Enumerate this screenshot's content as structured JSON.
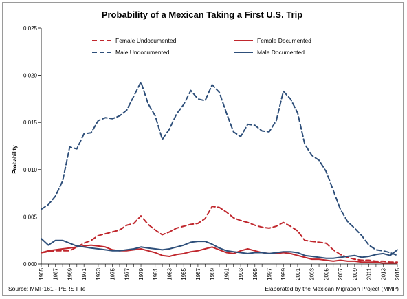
{
  "chart_data": {
    "type": "line",
    "title": "Probability  of a Mexican Taking a First U.S. Trip",
    "xlabel": "",
    "ylabel": "Probability",
    "ylim": [
      0,
      0.025
    ],
    "yticks": [
      "0.000",
      "0.005",
      "0.010",
      "0.015",
      "0.020",
      "0.025"
    ],
    "xticks": [
      "1965",
      "1967",
      "1969",
      "1971",
      "1973",
      "1975",
      "1977",
      "1979",
      "1981",
      "1983",
      "1985",
      "1987",
      "1989",
      "1991",
      "1993",
      "1995",
      "1997",
      "1999",
      "2001",
      "2003",
      "2005",
      "2007",
      "2009",
      "2011",
      "2013",
      "2015"
    ],
    "grid": false,
    "legend": "top",
    "x": [
      1965,
      1966,
      1967,
      1968,
      1969,
      1970,
      1971,
      1972,
      1973,
      1974,
      1975,
      1976,
      1977,
      1978,
      1979,
      1980,
      1981,
      1982,
      1983,
      1984,
      1985,
      1986,
      1987,
      1988,
      1989,
      1990,
      1991,
      1992,
      1993,
      1994,
      1995,
      1996,
      1997,
      1998,
      1999,
      2000,
      2001,
      2002,
      2003,
      2004,
      2005,
      2006,
      2007,
      2008,
      2009,
      2010,
      2011,
      2012,
      2013,
      2014,
      2015
    ],
    "series": [
      {
        "name": "Female Undocumented",
        "color": "#c0272d",
        "dash": true,
        "values": [
          0.0012,
          0.0013,
          0.0014,
          0.0014,
          0.0014,
          0.0018,
          0.0022,
          0.0025,
          0.003,
          0.0032,
          0.0034,
          0.0036,
          0.0041,
          0.0043,
          0.0051,
          0.0042,
          0.0036,
          0.0031,
          0.0034,
          0.0038,
          0.004,
          0.0042,
          0.0043,
          0.0048,
          0.0061,
          0.006,
          0.0055,
          0.0049,
          0.0046,
          0.0044,
          0.0041,
          0.0039,
          0.0038,
          0.004,
          0.0044,
          0.004,
          0.0035,
          0.0025,
          0.0024,
          0.0023,
          0.0022,
          0.0015,
          0.001,
          0.0007,
          0.0005,
          0.0004,
          0.0004,
          0.0003,
          0.0003,
          0.0002,
          0.0002
        ]
      },
      {
        "name": "Female Documented",
        "color": "#c0272d",
        "dash": false,
        "values": [
          0.0012,
          0.0014,
          0.0015,
          0.0016,
          0.0017,
          0.0018,
          0.0019,
          0.002,
          0.0019,
          0.0018,
          0.0015,
          0.0014,
          0.0014,
          0.0015,
          0.0016,
          0.0014,
          0.0012,
          0.0009,
          0.0008,
          0.001,
          0.0011,
          0.0013,
          0.0014,
          0.0016,
          0.0018,
          0.0015,
          0.0012,
          0.0011,
          0.0014,
          0.0016,
          0.0014,
          0.0012,
          0.0011,
          0.0011,
          0.0012,
          0.0011,
          0.0009,
          0.0007,
          0.0005,
          0.0005,
          0.0004,
          0.0003,
          0.0004,
          0.0003,
          0.0003,
          0.0002,
          0.0002,
          0.0002,
          0.0001,
          0.0001,
          0.0001
        ]
      },
      {
        "name": "Male Undocumented",
        "color": "#2e4f7a",
        "dash": true,
        "values": [
          0.0058,
          0.0063,
          0.0072,
          0.0088,
          0.0124,
          0.0122,
          0.0138,
          0.0139,
          0.0152,
          0.0155,
          0.0154,
          0.0157,
          0.0163,
          0.0178,
          0.0193,
          0.017,
          0.0157,
          0.0132,
          0.0143,
          0.0159,
          0.0169,
          0.0184,
          0.0175,
          0.0173,
          0.019,
          0.0182,
          0.016,
          0.014,
          0.0135,
          0.0148,
          0.0147,
          0.0141,
          0.014,
          0.0152,
          0.0183,
          0.0175,
          0.016,
          0.0127,
          0.0115,
          0.011,
          0.0098,
          0.0078,
          0.0058,
          0.0045,
          0.0038,
          0.003,
          0.002,
          0.0015,
          0.0014,
          0.0012,
          0.0009
        ]
      },
      {
        "name": "Male Documented",
        "color": "#2e4f7a",
        "dash": false,
        "values": [
          0.0027,
          0.002,
          0.0025,
          0.0025,
          0.0022,
          0.0019,
          0.0018,
          0.0017,
          0.0016,
          0.0015,
          0.0014,
          0.0014,
          0.0015,
          0.0016,
          0.0018,
          0.0017,
          0.0016,
          0.0015,
          0.0016,
          0.0018,
          0.002,
          0.0023,
          0.0024,
          0.0024,
          0.0021,
          0.0017,
          0.0014,
          0.0013,
          0.0012,
          0.0011,
          0.0012,
          0.0012,
          0.0011,
          0.0012,
          0.0013,
          0.0013,
          0.0012,
          0.0009,
          0.0008,
          0.0007,
          0.0006,
          0.0006,
          0.0007,
          0.0008,
          0.0009,
          0.0007,
          0.0008,
          0.001,
          0.0011,
          0.0009,
          0.0015
        ]
      }
    ]
  },
  "footer": {
    "source": "Source: MMP161 - PERS File",
    "credit": "Elaborated by the Mexican Migration Project (MMP)"
  }
}
